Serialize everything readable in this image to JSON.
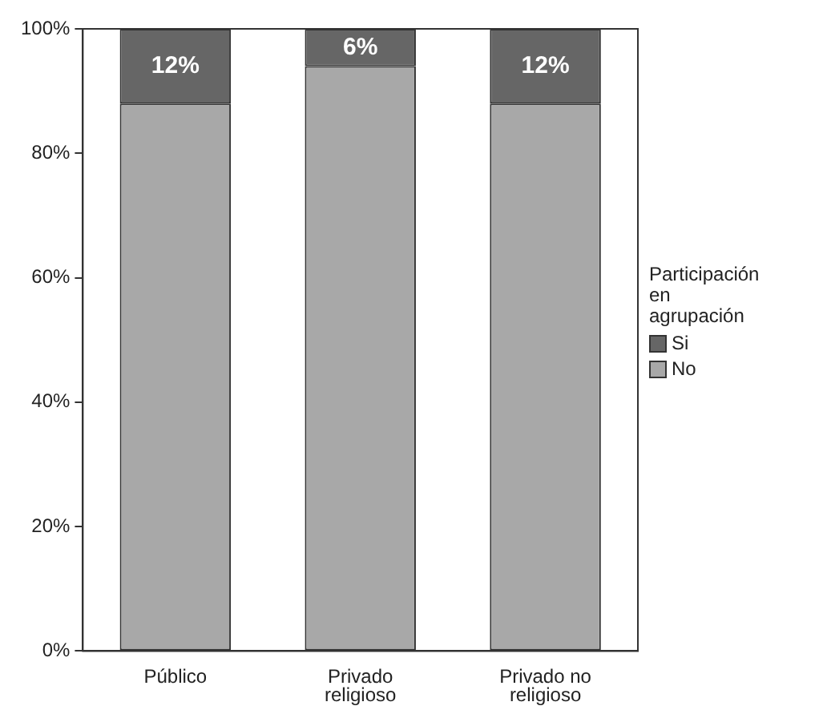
{
  "chart_data": {
    "type": "bar",
    "stacked": true,
    "legend": "right",
    "legend_title": "Participación en agrupación",
    "categories": [
      "Público",
      "Privado religioso",
      "Privado no religioso"
    ],
    "series": [
      {
        "name": "No",
        "color": "#a8a8a8",
        "values": [
          88,
          94,
          88
        ]
      },
      {
        "name": "Si",
        "color": "#666666",
        "values": [
          12,
          6,
          12
        ],
        "value_labels": [
          "12%",
          "6%",
          "12%"
        ]
      }
    ],
    "ylim": [
      0,
      100
    ],
    "yticks": [
      {
        "value": 0,
        "label": "0%"
      },
      {
        "value": 20,
        "label": "20%"
      },
      {
        "value": 40,
        "label": "40%"
      },
      {
        "value": 60,
        "label": "60%"
      },
      {
        "value": 80,
        "label": "80%"
      },
      {
        "value": 100,
        "label": "100%"
      }
    ],
    "grid": false
  }
}
